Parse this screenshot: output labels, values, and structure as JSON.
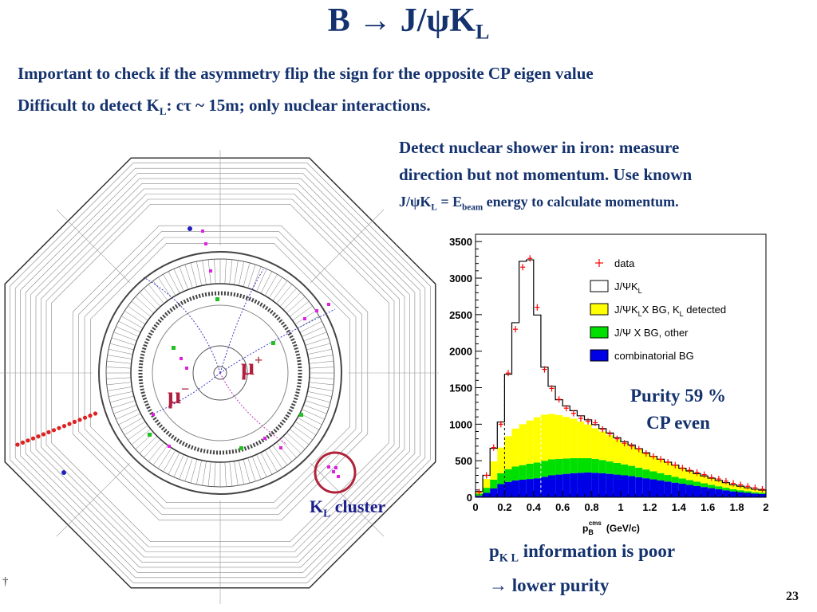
{
  "title": {
    "main": "B → J/ψK",
    "sub": "L"
  },
  "lines": {
    "line1": "Important to check if the asymmetry flip the  sign for the opposite CP eigen value",
    "line2a": "Difficult to detect K",
    "line2sub": "L",
    "line2b": ": cτ ~ 15m; only nuclear interactions."
  },
  "detect": {
    "l1": "Detect nuclear shower in iron: measure",
    "l2": "direction but not momentum. Use known",
    "l3a": "J/ψK",
    "l3sub1": "L",
    "l3b": " = E",
    "l3sub2": "beam",
    "l3c": " energy to calculate momentum."
  },
  "detector": {
    "mu_plus": "μ",
    "mu_plus_sign": "+",
    "mu_minus": "μ",
    "mu_minus_sign": "−",
    "kl_main": "K",
    "kl_sub": "L",
    "kl_rest": " cluster",
    "dagger": "†"
  },
  "purity": {
    "line1": "Purity 59 %",
    "line2": "CP even"
  },
  "pk": {
    "p": "p",
    "psub": "K L",
    "rest": " information is poor",
    "line2": "→ lower purity"
  },
  "page_number": "23",
  "colors": {
    "text": "#14326e",
    "yellow": "#ffff00",
    "green": "#00e000",
    "blue": "#0000e6",
    "data": "#ff0000",
    "circle": "#b0233a"
  },
  "chart_data": {
    "type": "histogram",
    "xlabel_main": "p",
    "xlabel_sub": "B",
    "xlabel_sup": "cms",
    "xlabel_unit": "(GeV/c)",
    "xlim": [
      0,
      2
    ],
    "ylim": [
      0,
      3600
    ],
    "x_ticks": [
      "0",
      "0.2",
      "0.4",
      "0.6",
      "0.8",
      "1",
      "1.2",
      "1.4",
      "1.6",
      "1.8",
      "2"
    ],
    "y_ticks": [
      "0",
      "500",
      "1000",
      "1500",
      "2000",
      "2500",
      "3000",
      "3500"
    ],
    "bin_width": 0.05,
    "bin_starts": [
      0.0,
      0.05,
      0.1,
      0.15,
      0.2,
      0.25,
      0.3,
      0.35,
      0.4,
      0.45,
      0.5,
      0.55,
      0.6,
      0.65,
      0.7,
      0.75,
      0.8,
      0.85,
      0.9,
      0.95,
      1.0,
      1.05,
      1.1,
      1.15,
      1.2,
      1.25,
      1.3,
      1.35,
      1.4,
      1.45,
      1.5,
      1.55,
      1.6,
      1.65,
      1.7,
      1.75,
      1.8,
      1.85,
      1.9,
      1.95
    ],
    "legend": [
      "data",
      "J/ΨK_L",
      "J/ΨK_LX BG, K_L detected",
      "J/Ψ X BG, other",
      "combinatorial BG"
    ],
    "series": [
      {
        "name": "combinatorial BG",
        "values": [
          20,
          60,
          120,
          180,
          210,
          230,
          240,
          250,
          260,
          280,
          300,
          310,
          320,
          330,
          335,
          340,
          335,
          330,
          320,
          310,
          300,
          290,
          275,
          260,
          245,
          230,
          215,
          200,
          185,
          170,
          155,
          140,
          125,
          110,
          95,
          80,
          70,
          60,
          50,
          45
        ]
      },
      {
        "name": "J/Ψ X BG, other",
        "values": [
          30,
          70,
          120,
          150,
          175,
          190,
          200,
          210,
          215,
          220,
          220,
          215,
          210,
          205,
          200,
          195,
          190,
          180,
          170,
          160,
          150,
          140,
          130,
          120,
          110,
          100,
          90,
          80,
          72,
          65,
          58,
          52,
          46,
          40,
          35,
          30,
          26,
          22,
          18,
          15
        ]
      },
      {
        "name": "J/ΨK_LX BG, K_L detected",
        "values": [
          20,
          120,
          250,
          350,
          450,
          520,
          560,
          590,
          620,
          630,
          620,
          600,
          570,
          540,
          500,
          460,
          420,
          390,
          360,
          320,
          290,
          270,
          250,
          220,
          200,
          185,
          170,
          155,
          140,
          125,
          110,
          100,
          90,
          80,
          70,
          60,
          55,
          48,
          42,
          38
        ]
      },
      {
        "name": "J/ΨK_L",
        "values": [
          10,
          50,
          180,
          350,
          850,
          1450,
          2230,
          2200,
          1400,
          650,
          380,
          210,
          150,
          110,
          80,
          65,
          50,
          40,
          30,
          25,
          20,
          15,
          10,
          8,
          5,
          5,
          5,
          5,
          0,
          0,
          0,
          0,
          0,
          0,
          0,
          0,
          0,
          0,
          0,
          0
        ]
      },
      {
        "name": "data",
        "values": [
          70,
          300,
          680,
          1000,
          1700,
          2300,
          3150,
          3270,
          2600,
          1750,
          1490,
          1340,
          1220,
          1150,
          1080,
          1040,
          1020,
          930,
          870,
          800,
          740,
          700,
          660,
          600,
          560,
          520,
          480,
          440,
          400,
          370,
          340,
          310,
          270,
          250,
          220,
          190,
          170,
          150,
          130,
          110
        ]
      }
    ]
  }
}
